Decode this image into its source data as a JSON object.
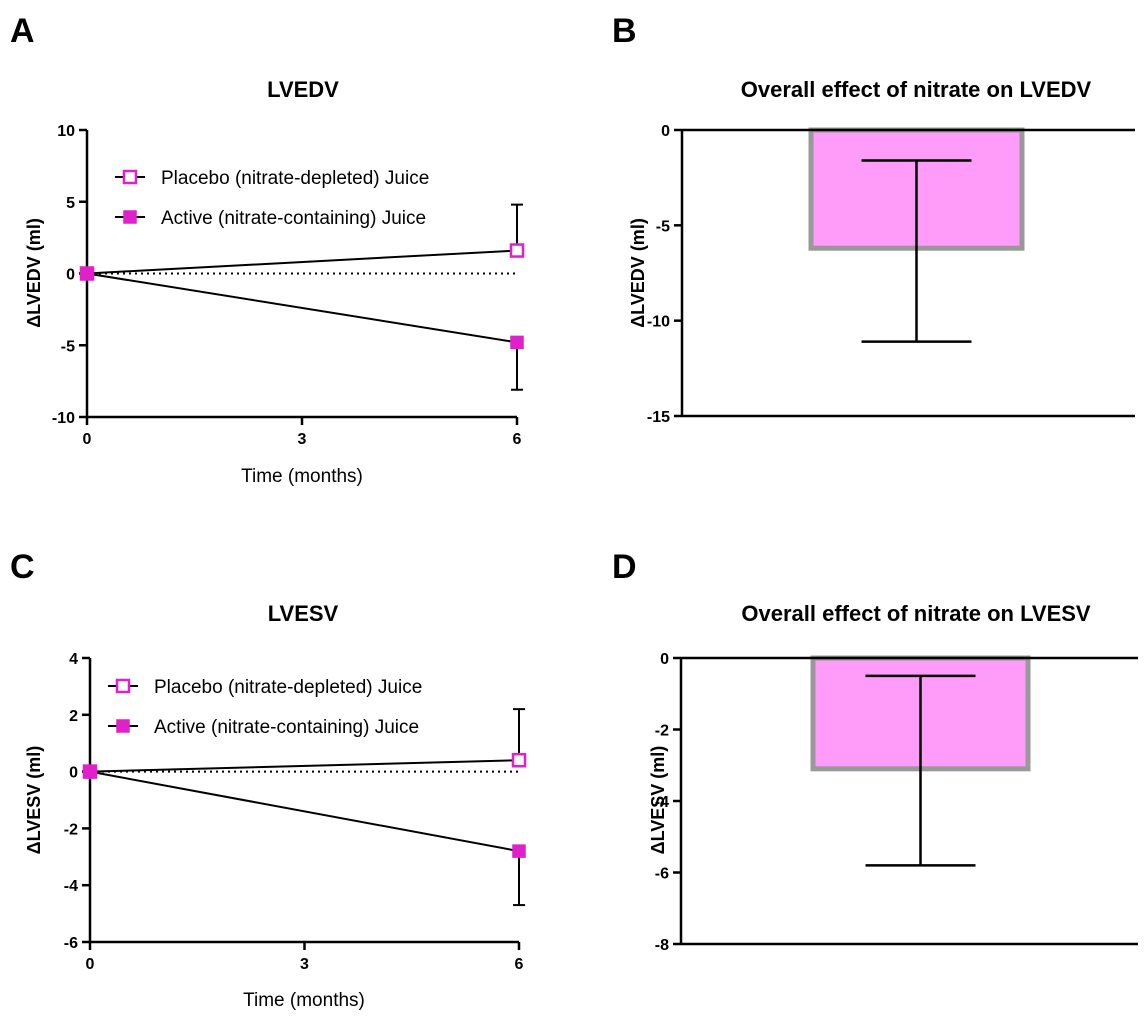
{
  "panels": [
    {
      "letter": "A"
    },
    {
      "letter": "B"
    },
    {
      "letter": "C"
    },
    {
      "letter": "D"
    }
  ],
  "chart_data": [
    {
      "type": "line",
      "panel": "A",
      "title": "LVEDV",
      "xlabel": "Time (months)",
      "ylabel": "ΔLVEDV (ml)",
      "xlim": [
        0,
        6
      ],
      "ylim": [
        -10,
        10
      ],
      "xticks": [
        0,
        3,
        6
      ],
      "yticks": [
        10,
        5,
        0,
        -5,
        -10
      ],
      "reference_line": 0,
      "legend_position": "top-left",
      "series": [
        {
          "name": "Placebo (nitrate-depleted) Juice",
          "marker": "open-square",
          "color": "#e020c8",
          "x": [
            0,
            6
          ],
          "y": [
            0,
            1.6
          ],
          "error_upper": [
            0,
            3.2
          ],
          "error_lower": [
            0,
            0
          ]
        },
        {
          "name": "Active (nitrate-containing) Juice",
          "marker": "filled-square",
          "color": "#e020c8",
          "x": [
            0,
            6
          ],
          "y": [
            0,
            -4.8
          ],
          "error_upper": [
            0,
            0
          ],
          "error_lower": [
            0,
            3.3
          ]
        }
      ]
    },
    {
      "type": "bar",
      "panel": "B",
      "title": "Overall effect of nitrate on LVEDV",
      "ylabel": "ΔLVEDV (ml)",
      "ylim": [
        -15,
        0
      ],
      "yticks": [
        0,
        -5,
        -10,
        -15
      ],
      "values": [
        -6.2
      ],
      "error_upper": [
        4.6
      ],
      "error_lower": [
        4.9
      ],
      "fill": "#ff9cfa",
      "border": "#999999"
    },
    {
      "type": "line",
      "panel": "C",
      "title": "LVESV",
      "xlabel": "Time (months)",
      "ylabel": "ΔLVESV (ml)",
      "xlim": [
        0,
        6
      ],
      "ylim": [
        -6,
        4
      ],
      "xticks": [
        0,
        3,
        6
      ],
      "yticks": [
        4,
        2,
        0,
        -2,
        -4,
        -6
      ],
      "reference_line": 0,
      "legend_position": "top-left",
      "series": [
        {
          "name": "Placebo (nitrate-depleted) Juice",
          "marker": "open-square",
          "color": "#e020c8",
          "x": [
            0,
            6
          ],
          "y": [
            0,
            0.4
          ],
          "error_upper": [
            0,
            1.8
          ],
          "error_lower": [
            0,
            0
          ]
        },
        {
          "name": "Active (nitrate-containing) Juice",
          "marker": "filled-square",
          "color": "#e020c8",
          "x": [
            0,
            6
          ],
          "y": [
            0,
            -2.8
          ],
          "error_upper": [
            0,
            0
          ],
          "error_lower": [
            0,
            1.9
          ]
        }
      ]
    },
    {
      "type": "bar",
      "panel": "D",
      "title": "Overall effect of nitrate on LVESV",
      "ylabel": "ΔLVESV (ml)",
      "ylim": [
        -8,
        0
      ],
      "yticks": [
        0,
        -2,
        -4,
        -6,
        -8
      ],
      "values": [
        -3.1
      ],
      "error_upper": [
        2.6
      ],
      "error_lower": [
        2.7
      ],
      "fill": "#ff9cfa",
      "border": "#999999"
    }
  ]
}
